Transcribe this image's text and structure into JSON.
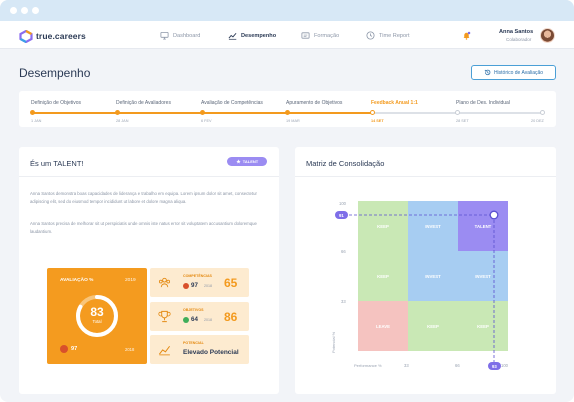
{
  "app": {
    "logo_text": "true.careers"
  },
  "nav": {
    "items": [
      {
        "label": "Dashboard",
        "icon": "monitor-icon",
        "active": false
      },
      {
        "label": "Desempenho",
        "icon": "chart-line-icon",
        "active": true
      },
      {
        "label": "Formação",
        "icon": "education-icon",
        "active": false
      },
      {
        "label": "Time Report",
        "icon": "clock-icon",
        "active": false
      }
    ],
    "user": {
      "name": "Anna Santos",
      "role": "Colaborador"
    }
  },
  "page": {
    "title": "Desempenho",
    "history_button": "Histórico de Avaliação"
  },
  "timeline": {
    "stages": [
      {
        "label": "Definição de Objetivos",
        "date": "1 JAN",
        "state": "done"
      },
      {
        "label": "Definição de Avaliadores",
        "date": "28 JAN",
        "state": "done"
      },
      {
        "label": "Avaliação de Competências",
        "date": "6 FEV",
        "state": "done"
      },
      {
        "label": "Apuramento de Objetivos",
        "date": "19 MAR",
        "state": "done"
      },
      {
        "label": "Feedback Anual 1:1",
        "date": "14 SET",
        "state": "current"
      },
      {
        "label": "Plano de Des. Individual",
        "date": "28 SET",
        "state": "todo"
      },
      {
        "label": "",
        "date": "20 DEZ",
        "state": "todo"
      }
    ]
  },
  "talent_card": {
    "title": "És um TALENT!",
    "badge": "TALENT",
    "paragraph1": "Anna Santos demonstra boas capacidades de liderança e trabalho em equipa. Lorem ipsum dolor sit amet, consectetur adipiscing elit, sed do eiusmod tempor incididunt ut labore et dolore magna aliqua.",
    "paragraph2": "Anna Santos precisa de melhorar sit ut perspiciatis unde omnis iste natus error sit voluptatem accusantium doloremque laudantium.",
    "evaluation": {
      "label": "AVALIAÇÃO %",
      "year": "2019",
      "value": "83",
      "value_label": "Total",
      "progress": 0.83,
      "previous_value": "97",
      "previous_year": "2018"
    },
    "metrics": [
      {
        "label": "COMPETÊNCIAS",
        "sub_value": "97",
        "sub_year": "2018",
        "big": "65",
        "icon": "team-icon",
        "sub_icon_color": "#d8502b"
      },
      {
        "label": "OBJETIVOS",
        "sub_value": "64",
        "sub_year": "2018",
        "big": "86",
        "icon": "trophy-icon",
        "sub_icon_color": "#3fae5a"
      },
      {
        "label": "POTENCIAL",
        "text": "Elevado Potencial",
        "icon": "growth-chart-icon"
      }
    ]
  },
  "matrix_card": {
    "title": "Matriz de Consolidação",
    "y_ticks": [
      "100",
      "66",
      "33"
    ],
    "x_ticks": [
      "33",
      "66",
      "100"
    ],
    "y_title": "Potencial %",
    "x_title": "Performance %",
    "y_marker": "91",
    "x_marker": "93",
    "cells": [
      {
        "label": "KEEP",
        "color": "#c9e8b5"
      },
      {
        "label": "INVEST",
        "color": "#a7cdf2"
      },
      {
        "label": "TALENT",
        "color": "#9b8cf2"
      },
      {
        "label": "KEEP",
        "color": "#c9e8b5"
      },
      {
        "label": "INVEST",
        "color": "#a7cdf2"
      },
      {
        "label": "INVEST",
        "color": "#a7cdf2"
      },
      {
        "label": "LEAVE",
        "color": "#f5c3c0"
      },
      {
        "label": "KEEP",
        "color": "#c9e8b5"
      },
      {
        "label": "KEEP",
        "color": "#c9e8b5"
      }
    ]
  },
  "colors": {
    "accent": "#f39a1e",
    "primary": "#2b3a55",
    "talent": "#9b8cf2"
  }
}
